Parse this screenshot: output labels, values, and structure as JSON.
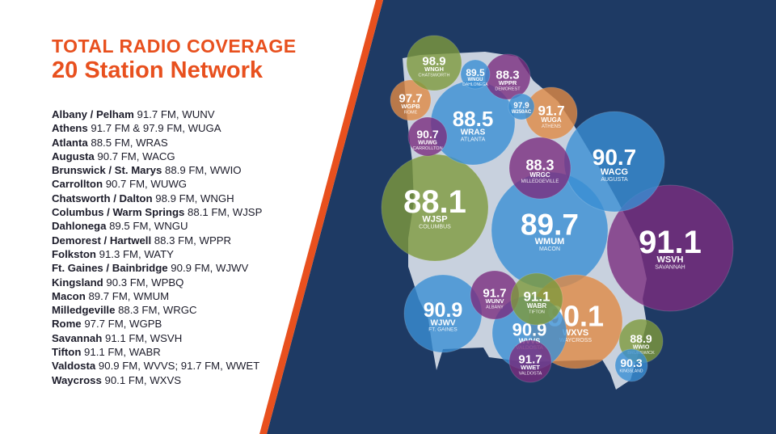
{
  "title": {
    "line1": "TOTAL RADIO COVERAGE",
    "line2": "20 Station Network"
  },
  "colors": {
    "background_right": "#1e3a64",
    "accent": "#e8501e",
    "state": "#c8d1de",
    "olive": "#7e9a3c",
    "blue": "#3a8fd3",
    "purple": "#7b2d7e",
    "orange": "#e08a43",
    "steel": "#5b88b5"
  },
  "stations": [
    {
      "city": "Albany / Pelham",
      "info": "91.7 FM, WUNV"
    },
    {
      "city": "Athens",
      "info": "91.7 FM & 97.9 FM, WUGA"
    },
    {
      "city": "Atlanta",
      "info": "88.5 FM, WRAS"
    },
    {
      "city": "Augusta",
      "info": "90.7 FM, WACG"
    },
    {
      "city": "Brunswick / St. Marys",
      "info": "88.9 FM, WWIO"
    },
    {
      "city": "Carrollton",
      "info": "90.7 FM, WUWG"
    },
    {
      "city": "Chatsworth / Dalton",
      "info": "98.9 FM, WNGH"
    },
    {
      "city": "Columbus / Warm Springs",
      "info": "88.1 FM, WJSP"
    },
    {
      "city": "Dahlonega",
      "info": "89.5 FM, WNGU"
    },
    {
      "city": "Demorest / Hartwell",
      "info": "88.3 FM, WPPR"
    },
    {
      "city": "Folkston",
      "info": "91.3 FM, WATY"
    },
    {
      "city": "Ft. Gaines / Bainbridge",
      "info": "90.9 FM, WJWV"
    },
    {
      "city": "Kingsland",
      "info": "90.3 FM, WPBQ"
    },
    {
      "city": "Macon",
      "info": "89.7 FM, WMUM"
    },
    {
      "city": "Milledgeville",
      "info": "88.3 FM, WRGC"
    },
    {
      "city": "Rome",
      "info": "97.7 FM, WGPB"
    },
    {
      "city": "Savannah",
      "info": "91.1 FM, WSVH"
    },
    {
      "city": "Tifton",
      "info": "91.1 FM, WABR"
    },
    {
      "city": "Valdosta",
      "info": "90.9 FM, WVVS; 91.7 FM, WWET"
    },
    {
      "city": "Waycross",
      "info": "90.1 FM, WXVS"
    }
  ],
  "circles": [
    {
      "freq": "88.1",
      "call": "WJSP",
      "city": "COLUMBUS",
      "color": "olive"
    },
    {
      "freq": "91.1",
      "call": "WSVH",
      "city": "SAVANNAH",
      "color": "purple"
    },
    {
      "freq": "89.7",
      "call": "WMUM",
      "city": "MACON",
      "color": "blue"
    },
    {
      "freq": "90.7",
      "call": "WACG",
      "city": "AUGUSTA",
      "color": "blue"
    },
    {
      "freq": "88.5",
      "call": "WRAS",
      "city": "ATLANTA",
      "color": "blue"
    },
    {
      "freq": "90.1",
      "call": "WXVS",
      "city": "WAYCROSS",
      "color": "orange"
    },
    {
      "freq": "90.9",
      "call": "WJWV",
      "city": "FT. GAINES",
      "color": "blue"
    },
    {
      "freq": "90.9",
      "call": "WVVS",
      "city": "VALDOSTA",
      "color": "blue"
    },
    {
      "freq": "91.7",
      "call": "WUGA",
      "city": "ATHENS",
      "color": "orange"
    },
    {
      "freq": "88.3",
      "call": "WRGC",
      "city": "MILLEDGEVILLE",
      "color": "purple"
    },
    {
      "freq": "97.7",
      "call": "WGPB",
      "city": "ROME",
      "color": "orange"
    },
    {
      "freq": "98.9",
      "call": "WNGH",
      "city": "CHATSWORTH",
      "color": "olive"
    },
    {
      "freq": "88.3",
      "call": "WPPR",
      "city": "DEMOREST",
      "color": "purple"
    },
    {
      "freq": "89.5",
      "call": "WNGU",
      "city": "DAHLONEGA",
      "color": "blue"
    },
    {
      "freq": "97.9",
      "call": "W250AC",
      "city": "",
      "color": "blue"
    },
    {
      "freq": "90.7",
      "call": "WUWG",
      "city": "CARROLLTON",
      "color": "purple"
    },
    {
      "freq": "91.7",
      "call": "WUNV",
      "city": "ALBANY",
      "color": "purple"
    },
    {
      "freq": "91.1",
      "call": "WABR",
      "city": "TIFTON",
      "color": "olive"
    },
    {
      "freq": "91.7",
      "call": "WWET",
      "city": "VALDOSTA",
      "color": "purple"
    },
    {
      "freq": "88.9",
      "call": "WWIO",
      "city": "BRUNSWICK",
      "color": "olive"
    },
    {
      "freq": "90.3",
      "call": "",
      "city": "KINGSLAND",
      "color": "blue"
    }
  ]
}
